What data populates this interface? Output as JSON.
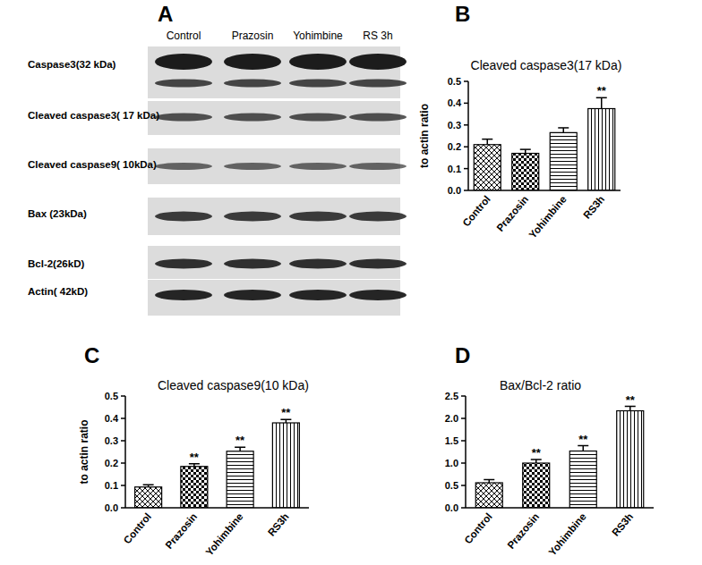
{
  "blot": {
    "panel": "A",
    "lanes": [
      "Control",
      "Prazosin",
      "Yohimbine",
      "RS 3h"
    ],
    "rows": [
      "Caspase3(32 kDa)",
      "Cleaved caspase3( 17 kDa)",
      "Cleaved caspase9( 10kDa)",
      "Bax (23kDa)",
      "Bcl-2(26kD)",
      "Actin( 42kD)"
    ]
  },
  "chart_data": [
    {
      "type": "bar",
      "annotations": [
        "B"
      ],
      "title": "Cleaved caspase3(17 kDa)",
      "y_label": "to actin ratio",
      "categories": [
        "Control",
        "Prazosin",
        "Yohimbine",
        "RS3h"
      ],
      "values": [
        0.21,
        0.17,
        0.265,
        0.375
      ],
      "errors": [
        0.025,
        0.018,
        0.022,
        0.05
      ],
      "significance": [
        null,
        null,
        null,
        "**"
      ],
      "color": "#000000",
      "ylim": [
        0,
        0.5
      ],
      "yticks": [
        {
          "value": 0,
          "label": "0.0"
        },
        0.1,
        0.2,
        0.3,
        0.4,
        0.5
      ],
      "grid": false
    },
    {
      "type": "bar",
      "annotations": [
        "C"
      ],
      "title": "Cleaved caspase9(10 kDa)",
      "y_label": "to actin ratio",
      "categories": [
        "Control",
        "Prazosin",
        "Yohimbine",
        "RS3h"
      ],
      "values": [
        0.093,
        0.185,
        0.253,
        0.38
      ],
      "errors": [
        0.01,
        0.012,
        0.018,
        0.015
      ],
      "significance": [
        null,
        "**",
        "**",
        "**"
      ],
      "color": "#000000",
      "ylim": [
        0,
        0.5
      ],
      "yticks": [
        {
          "value": 0,
          "label": "0.0"
        },
        0.1,
        0.2,
        0.3,
        0.4,
        0.5
      ],
      "grid": false
    },
    {
      "type": "bar",
      "annotations": [
        "D"
      ],
      "title": "Bax/Bcl-2 ratio",
      "categories": [
        "Control",
        "Prazosin",
        "Yohimbine",
        "RS3h"
      ],
      "values": [
        0.56,
        1.0,
        1.27,
        2.17
      ],
      "errors": [
        0.07,
        0.08,
        0.12,
        0.1
      ],
      "significance": [
        null,
        "**",
        "**",
        "**"
      ],
      "color": "#000000",
      "ylim": [
        0,
        2.5
      ],
      "yticks": [
        {
          "value": 0,
          "label": "0.0"
        },
        0.5,
        {
          "value": 1,
          "label": "1.0"
        },
        1.5,
        {
          "value": 2,
          "label": "2.0"
        },
        2.5
      ],
      "grid": false
    }
  ]
}
